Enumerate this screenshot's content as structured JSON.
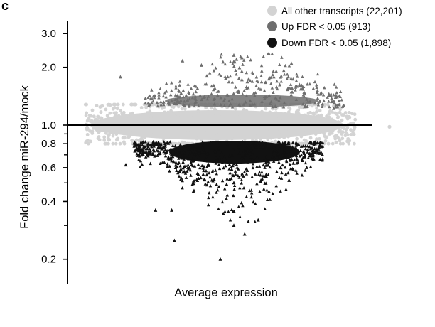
{
  "figure": {
    "panel_label": "c"
  },
  "chart_data": {
    "type": "scatter",
    "title": "",
    "xlabel": "Average expression",
    "ylabel": "Fold change miR-294/mock",
    "y_scale": "log",
    "ylim": [
      0.18,
      3.2
    ],
    "y_ticks": [
      {
        "value": 3.0,
        "label": "3.0"
      },
      {
        "value": 2.0,
        "label": "2.0"
      },
      {
        "value": 1.0,
        "label": "1.0"
      },
      {
        "value": 0.8,
        "label": "0.8"
      },
      {
        "value": 0.6,
        "label": "0.6"
      },
      {
        "value": 0.4,
        "label": "0.4"
      },
      {
        "value": 0.2,
        "label": "0.2"
      }
    ],
    "y_minor_ticks": [
      0.9,
      0.7,
      0.5,
      0.3
    ],
    "reference_line": 1.0,
    "xlim": [
      0,
      1
    ],
    "x_ticks": [],
    "grid": false,
    "legend_position": "top-right",
    "series": [
      {
        "name": "All other transcripts (22,201)",
        "color": "#d3d3d3",
        "marker": "circle",
        "count": 22201,
        "points": [
          [
            0.03,
            1.0
          ],
          [
            0.05,
            0.92
          ],
          [
            0.05,
            1.1
          ],
          [
            0.08,
            0.96
          ],
          [
            0.1,
            1.05
          ],
          [
            0.12,
            0.85
          ],
          [
            0.15,
            1.12
          ],
          [
            0.18,
            0.9
          ],
          [
            0.2,
            1.08
          ],
          [
            0.25,
            0.95
          ],
          [
            0.3,
            1.1
          ],
          [
            0.35,
            0.9
          ],
          [
            0.4,
            1.13
          ],
          [
            0.45,
            0.88
          ],
          [
            0.5,
            1.1
          ],
          [
            0.55,
            0.9
          ],
          [
            0.6,
            1.12
          ],
          [
            0.65,
            0.9
          ],
          [
            0.7,
            1.08
          ],
          [
            0.75,
            0.92
          ],
          [
            0.8,
            1.06
          ],
          [
            0.82,
            0.95
          ],
          [
            0.85,
            1.02
          ],
          [
            0.88,
            0.98
          ],
          [
            0.91,
            1.0
          ],
          [
            0.95,
            0.98
          ]
        ]
      },
      {
        "name": "Up FDR < 0.05 (913)",
        "color": "#6e6e6e",
        "marker": "triangle",
        "count": 913,
        "points": [
          [
            0.55,
            2.31
          ],
          [
            0.56,
            2.2
          ],
          [
            0.58,
            2.24
          ],
          [
            0.51,
            2.13
          ],
          [
            0.36,
            2.16
          ],
          [
            0.43,
            2.05
          ],
          [
            0.13,
            1.78
          ],
          [
            0.45,
            1.8
          ],
          [
            0.52,
            1.75
          ],
          [
            0.58,
            1.72
          ],
          [
            0.6,
            1.68
          ],
          [
            0.62,
            1.85
          ],
          [
            0.68,
            1.74
          ],
          [
            0.72,
            1.62
          ],
          [
            0.75,
            1.55
          ],
          [
            0.78,
            1.6
          ],
          [
            0.81,
            1.48
          ],
          [
            0.85,
            1.3
          ],
          [
            0.92,
            1.22
          ],
          [
            0.3,
            1.5
          ],
          [
            0.35,
            1.4
          ],
          [
            0.4,
            1.45
          ],
          [
            0.48,
            1.55
          ]
        ]
      },
      {
        "name": "Down FDR < 0.05 (1,898)",
        "color": "#111111",
        "marker": "triangle",
        "count": 1898,
        "points": [
          [
            0.5,
            0.2
          ],
          [
            0.33,
            0.25
          ],
          [
            0.26,
            0.36
          ],
          [
            0.32,
            0.36
          ],
          [
            0.55,
            0.3
          ],
          [
            0.59,
            0.27
          ],
          [
            0.64,
            0.32
          ],
          [
            0.68,
            0.45
          ],
          [
            0.82,
            0.6
          ],
          [
            0.15,
            0.62
          ],
          [
            0.85,
            0.72
          ],
          [
            0.45,
            0.55
          ],
          [
            0.55,
            0.5
          ],
          [
            0.6,
            0.58
          ],
          [
            0.4,
            0.45
          ],
          [
            0.38,
            0.6
          ],
          [
            0.35,
            0.7
          ],
          [
            0.62,
            0.7
          ],
          [
            0.66,
            0.62
          ],
          [
            0.5,
            0.65
          ],
          [
            0.42,
            0.68
          ],
          [
            0.7,
            0.72
          ],
          [
            0.2,
            0.76
          ],
          [
            0.25,
            0.8
          ],
          [
            0.75,
            0.8
          ]
        ]
      }
    ]
  }
}
